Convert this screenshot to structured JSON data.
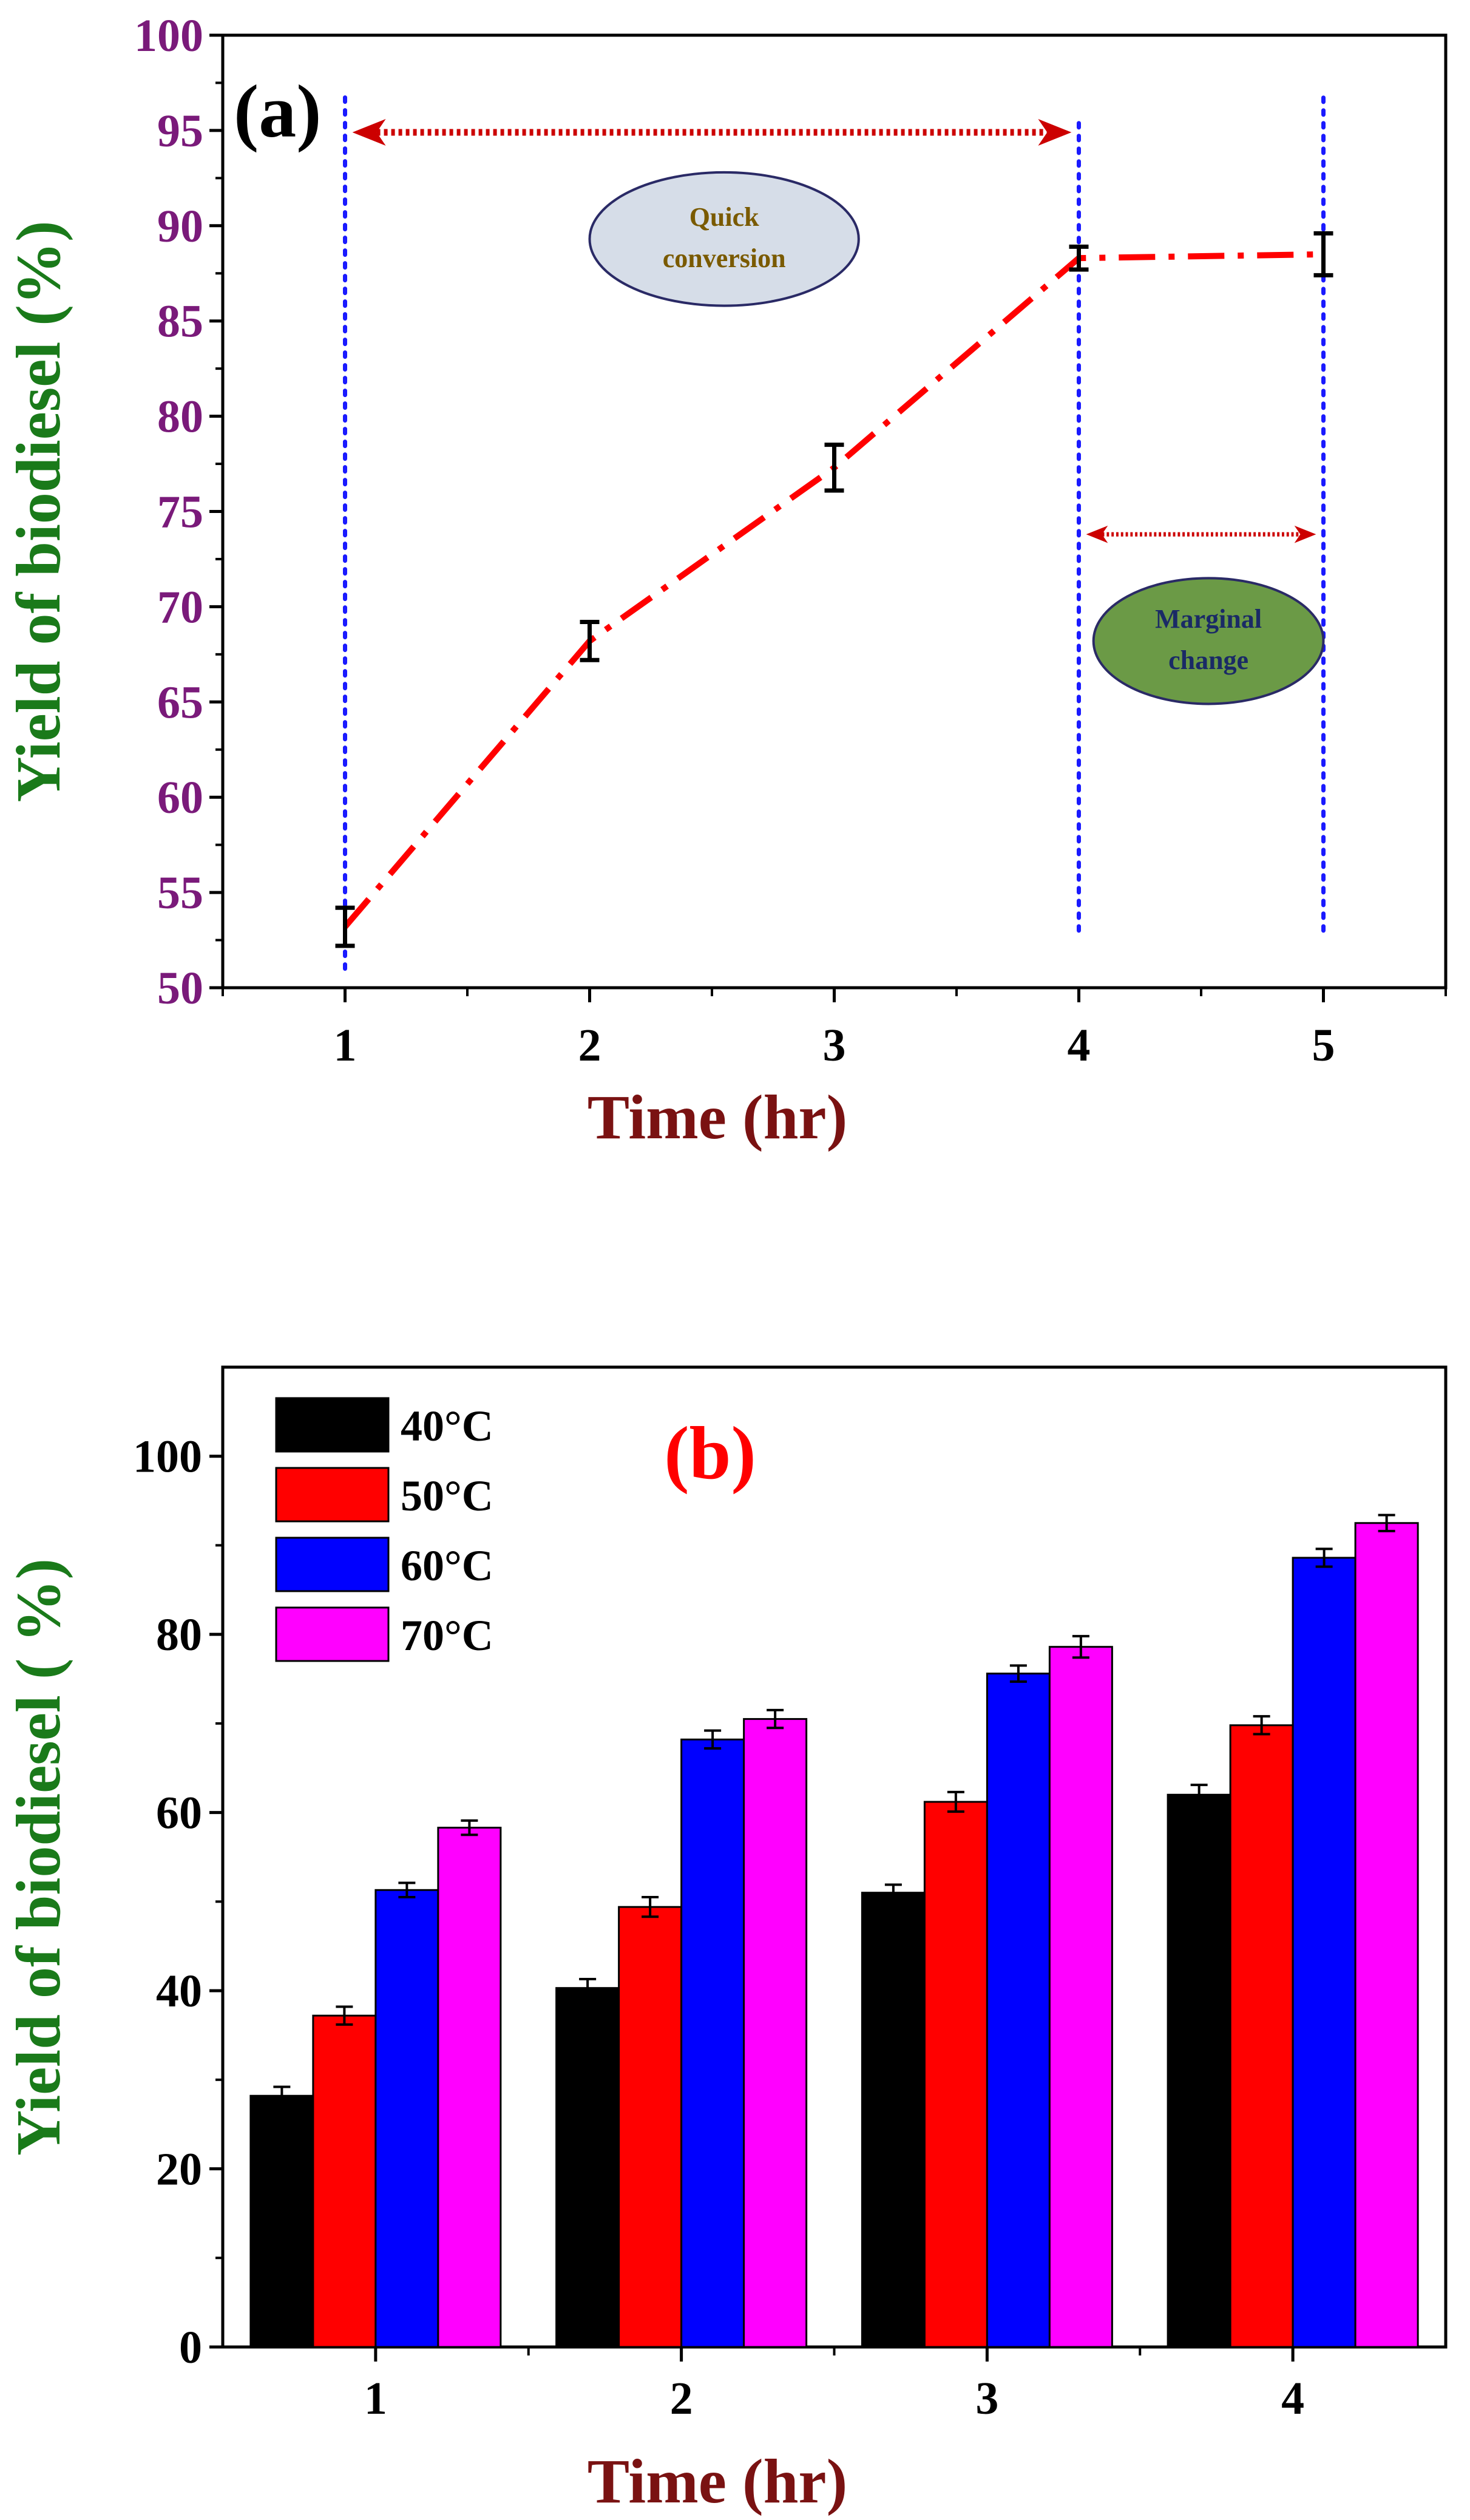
{
  "colors": {
    "axis_line": "#000000",
    "y_title_color": "#1a7a1a",
    "x_title_color": "#7a1212",
    "a_tick_label_color": "#7a1a7a",
    "b_tick_label_color": "#000000",
    "line_color": "#ff0000",
    "arrow_color": "#cc0000",
    "vline_color": "#1a1aff",
    "ellipse_quick_fill": "#d6dde8",
    "ellipse_quick_stroke": "#2a2a66",
    "ellipse_quick_text": "#7a5a00",
    "ellipse_marginal_fill": "#6b9a46",
    "ellipse_marginal_stroke": "#2a2a66",
    "ellipse_marginal_text": "#1a2a66",
    "panel_b_label": "#ff0000"
  },
  "chart_data": [
    {
      "type": "line",
      "panel_label": "(a)",
      "xlabel": "Time (hr)",
      "ylabel": "Yield of biodiesel (%)",
      "xlim": [
        0.5,
        5.5
      ],
      "ylim": [
        50,
        100
      ],
      "x_ticks": [
        1,
        2,
        3,
        4,
        5
      ],
      "y_ticks": [
        50,
        55,
        60,
        65,
        70,
        75,
        80,
        85,
        90,
        95,
        100
      ],
      "grid": false,
      "series": [
        {
          "x": [
            1,
            2,
            3,
            4,
            5
          ],
          "y": [
            53.2,
            68.2,
            77.3,
            88.3,
            88.5
          ],
          "err": [
            1.0,
            1.0,
            1.2,
            0.6,
            1.1
          ],
          "style": "dash-dot",
          "color": "#ff0000"
        }
      ],
      "annotations": [
        {
          "text_lines": [
            "Quick",
            "conversion"
          ],
          "type": "ellipse",
          "cx": 2.55,
          "cy": 89.3,
          "rx": 0.55,
          "ry": 3.5,
          "fill": "#d6dde8",
          "text_color": "#7a5a00"
        },
        {
          "text_lines": [
            "Marginal",
            "change"
          ],
          "type": "ellipse",
          "cx": 4.53,
          "cy": 68.2,
          "rx": 0.47,
          "ry": 3.3,
          "fill": "#6b9a46",
          "text_color": "#1a2a66"
        }
      ],
      "arrows": [
        {
          "x1": 1.03,
          "x2": 3.97,
          "y": 94.9,
          "style": "dotted",
          "color": "#cc0000"
        },
        {
          "x1": 4.03,
          "x2": 4.97,
          "y": 73.8,
          "style": "dotted",
          "color": "#cc0000"
        }
      ],
      "vlines": [
        {
          "x": 1,
          "y1": 51,
          "y2": 97
        },
        {
          "x": 4,
          "y1": 53,
          "y2": 95.5
        },
        {
          "x": 5,
          "y1": 53,
          "y2": 97
        }
      ]
    },
    {
      "type": "bar",
      "panel_label": "(b)",
      "xlabel": "Time (hr)",
      "ylabel": "Yield of biodiesel ( %)",
      "categories": [
        "1",
        "2",
        "3",
        "4"
      ],
      "ylim": [
        0,
        110
      ],
      "y_ticks": [
        0,
        20,
        40,
        60,
        80,
        100
      ],
      "grid": false,
      "legend_position": "top-left",
      "series": [
        {
          "name": "40°C",
          "color": "#000000",
          "values": [
            28.2,
            40.3,
            51.0,
            62.0
          ],
          "err": [
            1.0,
            1.0,
            0.9,
            1.1
          ]
        },
        {
          "name": "50°C",
          "color": "#ff0000",
          "values": [
            37.2,
            49.4,
            61.2,
            69.8
          ],
          "err": [
            1.0,
            1.1,
            1.1,
            1.0
          ]
        },
        {
          "name": "60°C",
          "color": "#0000ff",
          "values": [
            51.3,
            68.2,
            75.6,
            88.6
          ],
          "err": [
            0.8,
            1.0,
            0.9,
            1.0
          ]
        },
        {
          "name": "70°C",
          "color": "#ff00ff",
          "values": [
            58.3,
            70.5,
            78.6,
            92.5
          ],
          "err": [
            0.8,
            1.0,
            1.2,
            0.9
          ]
        }
      ]
    }
  ]
}
